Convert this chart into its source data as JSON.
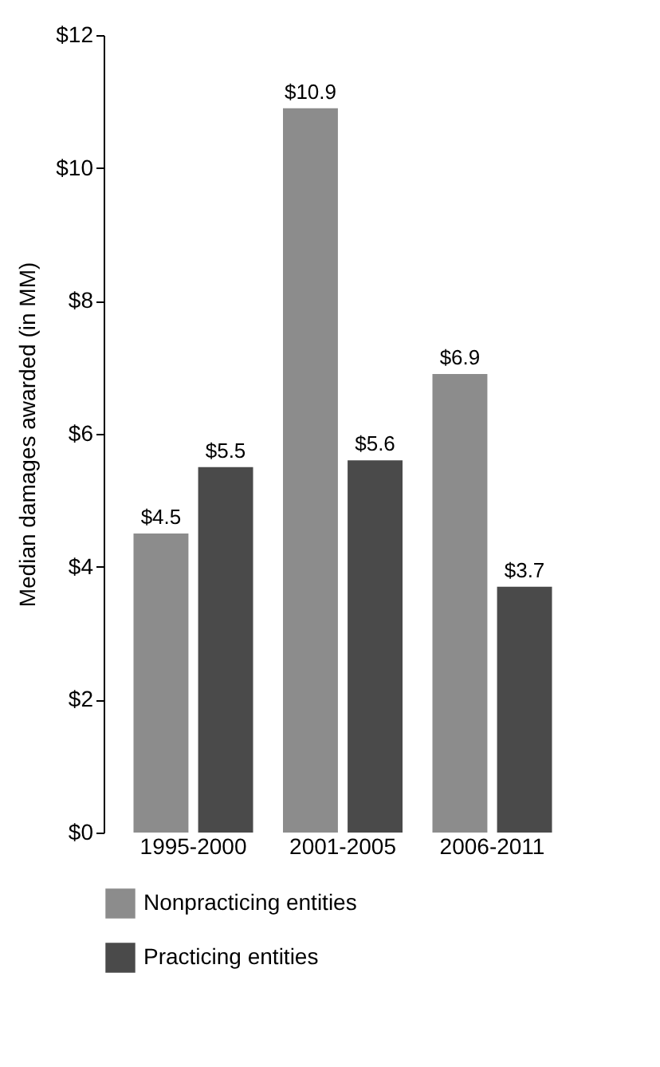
{
  "chart_data": {
    "type": "bar",
    "ylabel": "Median damages awarded (in MM)",
    "categories": [
      "1995-2000",
      "2001-2005",
      "2006-2011"
    ],
    "series": [
      {
        "name": "Nonpracticing entities",
        "color": "#8c8c8c",
        "values": [
          4.5,
          10.9,
          6.9
        ],
        "value_labels": [
          "$4.5",
          "$10.9",
          "$6.9"
        ]
      },
      {
        "name": "Practicing entities",
        "color": "#4a4a4a",
        "values": [
          5.5,
          5.6,
          3.7
        ],
        "value_labels": [
          "$5.5",
          "$5.6",
          "$3.7"
        ]
      }
    ],
    "ylim": [
      0,
      12
    ],
    "yticks": [
      {
        "value": 0,
        "label": "$0"
      },
      {
        "value": 2,
        "label": "$2"
      },
      {
        "value": 4,
        "label": "$4"
      },
      {
        "value": 6,
        "label": "$6"
      },
      {
        "value": 8,
        "label": "$8"
      },
      {
        "value": 10,
        "label": "$10"
      },
      {
        "value": 12,
        "label": "$12"
      }
    ],
    "grid": false,
    "legend": "bottom"
  }
}
